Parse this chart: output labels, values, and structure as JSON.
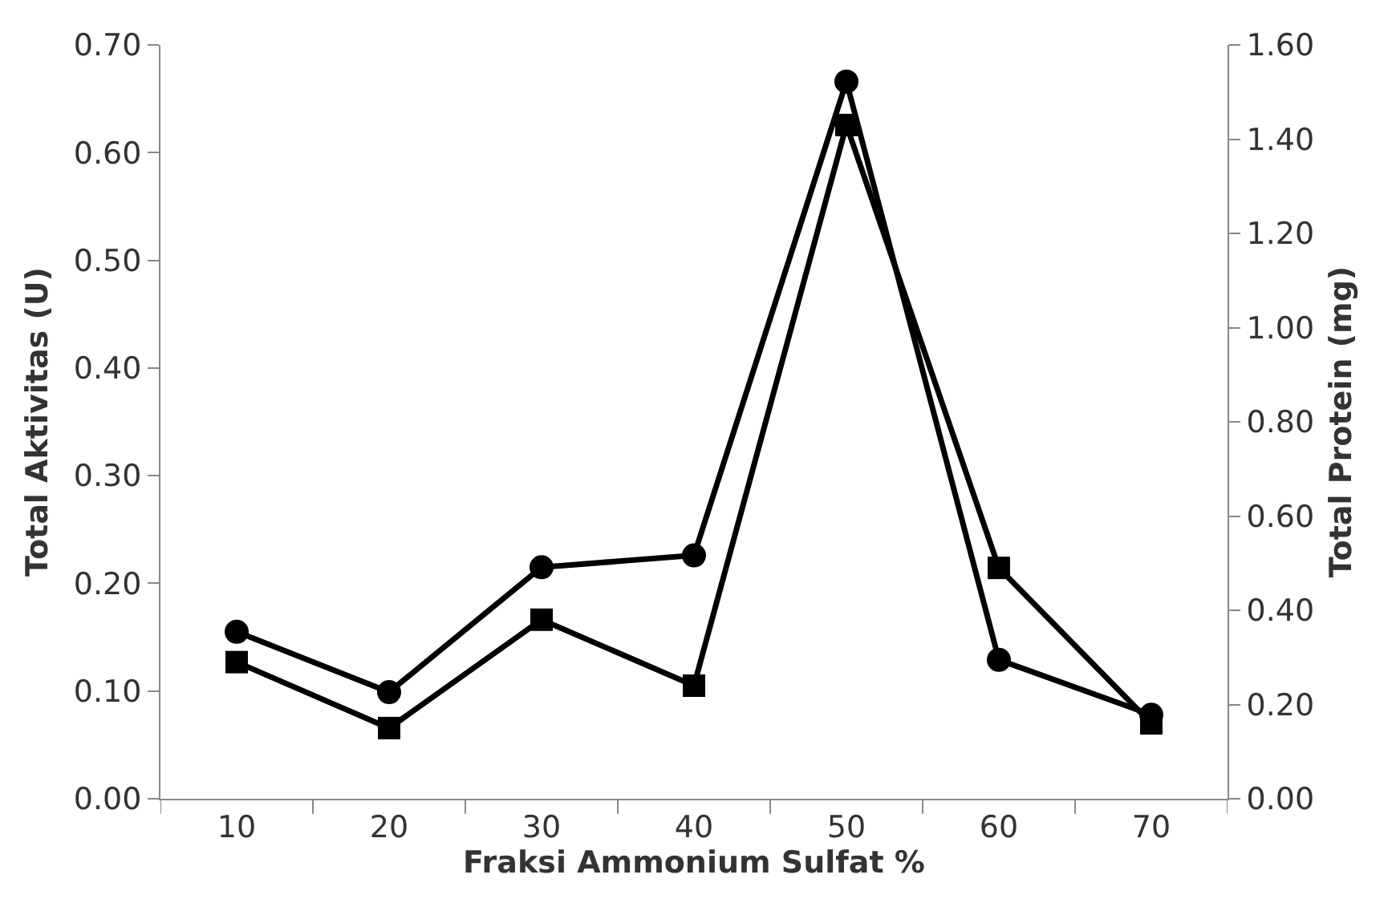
{
  "chart_data": {
    "type": "line",
    "xlabel": "Fraksi Ammonium Sulfat %",
    "ylabel": "Total Aktivitas (U)",
    "y2label": "Total Protein (mg)",
    "categories": [
      "10",
      "20",
      "30",
      "40",
      "50",
      "60",
      "70"
    ],
    "series": [
      {
        "color": "#000000",
        "marker": "circle",
        "values": [
          0.155,
          0.099,
          0.215,
          0.226,
          0.666,
          0.129,
          0.078
        ]
      },
      {
        "color": "#000000",
        "marker": "square",
        "axis": "y2",
        "values": [
          0.29,
          0.15,
          0.38,
          0.24,
          1.43,
          0.49,
          0.16
        ]
      }
    ],
    "ylim": [
      0,
      0.7
    ],
    "yticks": [
      {
        "value": 0,
        "label": "0.00"
      },
      {
        "value": 0.1,
        "label": "0.10"
      },
      {
        "value": 0.2,
        "label": "0.20"
      },
      {
        "value": 0.3,
        "label": "0.30"
      },
      {
        "value": 0.4,
        "label": "0.40"
      },
      {
        "value": 0.5,
        "label": "0.50"
      },
      {
        "value": 0.6,
        "label": "0.60"
      },
      {
        "value": 0.7,
        "label": "0.70"
      }
    ],
    "y2lim": [
      0,
      1.6
    ],
    "y2ticks": [
      {
        "value": 0,
        "label": "0.00"
      },
      {
        "value": 0.2,
        "label": "0.20"
      },
      {
        "value": 0.4,
        "label": "0.40"
      },
      {
        "value": 0.6,
        "label": "0.60"
      },
      {
        "value": 0.8,
        "label": "0.80"
      },
      {
        "value": 1.0,
        "label": "1.00"
      },
      {
        "value": 1.2,
        "label": "1.20"
      },
      {
        "value": 1.4,
        "label": "1.40"
      },
      {
        "value": 1.6,
        "label": "1.60"
      }
    ],
    "legend": false,
    "line_style": "solid"
  }
}
